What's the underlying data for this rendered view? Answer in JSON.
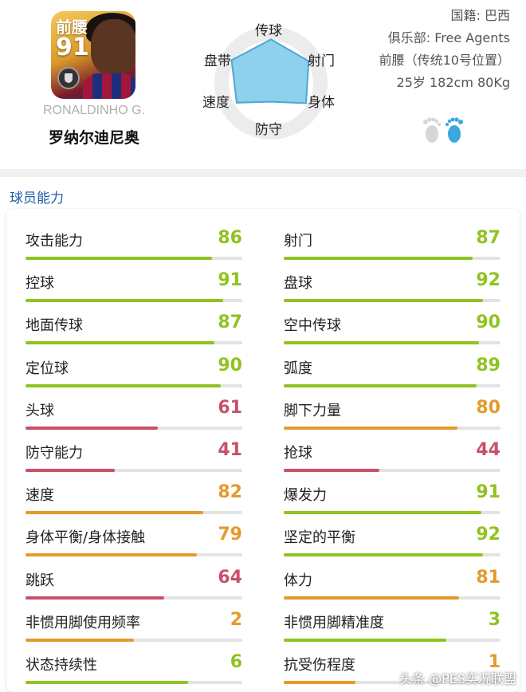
{
  "player": {
    "card_position": "前腰",
    "card_rating": "91",
    "name_en": "RONALDINHO G.",
    "name_cn": "罗纳尔迪尼奥"
  },
  "radar": {
    "labels": {
      "top": "传球",
      "top_left": "盘带",
      "top_right": "射门",
      "bottom_left": "速度",
      "bottom_right": "身体",
      "bottom": "防守"
    },
    "values": {
      "top": 0.88,
      "top_right": 0.88,
      "bottom_right": 0.82,
      "bottom": 0.38,
      "bottom_left": 0.8,
      "top_left": 0.92
    },
    "fill_color": "#8fd0ec",
    "stroke_color": "#4aa8d8"
  },
  "info": {
    "nationality": "国籍: 巴西",
    "club": "俱乐部: Free Agents",
    "position": "前腰（传统10号位置）",
    "body": "25岁 182cm 80Kg"
  },
  "footedness": {
    "left_icon": "left-foot-icon",
    "right_icon": "right-foot-icon",
    "preferred": "right",
    "active_color": "#3aa7e0",
    "inactive_color": "#d0d0d0"
  },
  "section": {
    "title": "球员能力"
  },
  "stats_left": [
    {
      "name": "攻击能力",
      "value": "86",
      "level": "green",
      "fill": 0.86
    },
    {
      "name": "控球",
      "value": "91",
      "level": "green",
      "fill": 0.91
    },
    {
      "name": "地面传球",
      "value": "87",
      "level": "green",
      "fill": 0.87
    },
    {
      "name": "定位球",
      "value": "90",
      "level": "green",
      "fill": 0.9
    },
    {
      "name": "头球",
      "value": "61",
      "level": "red",
      "fill": 0.61
    },
    {
      "name": "防守能力",
      "value": "41",
      "level": "red",
      "fill": 0.41
    },
    {
      "name": "速度",
      "value": "82",
      "level": "orange",
      "fill": 0.82
    },
    {
      "name": "身体平衡/身体接触",
      "value": "79",
      "level": "orange",
      "fill": 0.79
    },
    {
      "name": "跳跃",
      "value": "64",
      "level": "red",
      "fill": 0.64
    },
    {
      "name": "非惯用脚使用频率",
      "value": "2",
      "level": "orange",
      "fill": 0.5
    },
    {
      "name": "状态持续性",
      "value": "6",
      "level": "green",
      "fill": 0.75
    }
  ],
  "stats_right": [
    {
      "name": "射门",
      "value": "87",
      "level": "green",
      "fill": 0.87
    },
    {
      "name": "盘球",
      "value": "92",
      "level": "green",
      "fill": 0.92
    },
    {
      "name": "空中传球",
      "value": "90",
      "level": "green",
      "fill": 0.9
    },
    {
      "name": "弧度",
      "value": "89",
      "level": "green",
      "fill": 0.89
    },
    {
      "name": "脚下力量",
      "value": "80",
      "level": "orange",
      "fill": 0.8
    },
    {
      "name": "抢球",
      "value": "44",
      "level": "red",
      "fill": 0.44
    },
    {
      "name": "爆发力",
      "value": "91",
      "level": "green",
      "fill": 0.91
    },
    {
      "name": "坚定的平衡",
      "value": "92",
      "level": "green",
      "fill": 0.92
    },
    {
      "name": "体力",
      "value": "81",
      "level": "orange",
      "fill": 0.81
    },
    {
      "name": "非惯用脚精准度",
      "value": "3",
      "level": "green",
      "fill": 0.75
    },
    {
      "name": "抗受伤程度",
      "value": "1",
      "level": "orange",
      "fill": 0.33
    }
  ],
  "watermark": "头条 @PES实况联盟"
}
